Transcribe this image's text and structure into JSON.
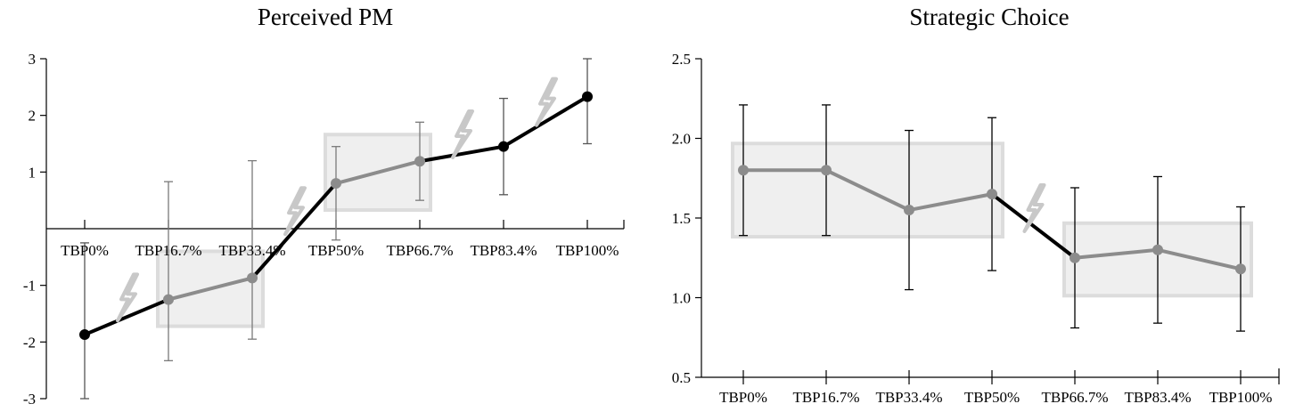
{
  "chart_data": [
    {
      "type": "line",
      "title": "Perceived PM",
      "categories": [
        "TBP0%",
        "TBP16.7%",
        "TBP33.4%",
        "TBP50%",
        "TBP66.7%",
        "TBP83.4%",
        "TBP100%"
      ],
      "series": [
        {
          "values": [
            -1.87,
            -1.25,
            -0.87,
            0.8,
            1.19,
            1.45,
            2.33
          ],
          "error_low": [
            -3.0,
            -2.33,
            -1.95,
            -0.2,
            0.5,
            0.6,
            1.5
          ],
          "error_high": [
            -0.25,
            0.83,
            1.2,
            1.45,
            1.88,
            2.3,
            3.0
          ]
        }
      ],
      "highlight_groups": [
        [
          1,
          2
        ],
        [
          3,
          4
        ]
      ],
      "transition_markers_after_index": [
        0,
        2,
        4,
        5
      ],
      "ylim": [
        -3,
        3
      ],
      "yticks": [
        -3,
        -2,
        -1,
        1,
        2,
        3
      ],
      "ytick_labels": [
        "-3",
        "-2",
        "-1",
        "1",
        "2",
        "3"
      ],
      "x_axis_at": 0,
      "line_color": "#000000",
      "highlight_color": "#8c8c8c",
      "grid": false
    },
    {
      "type": "line",
      "title": "Strategic Choice",
      "categories": [
        "TBP0%",
        "TBP16.7%",
        "TBP33.4%",
        "TBP50%",
        "TBP66.7%",
        "TBP83.4%",
        "TBP100%"
      ],
      "series": [
        {
          "values": [
            1.8,
            1.8,
            1.55,
            1.65,
            1.25,
            1.3,
            1.18
          ],
          "error_low": [
            1.39,
            1.39,
            1.05,
            1.17,
            0.81,
            0.84,
            0.79
          ],
          "error_high": [
            2.21,
            2.21,
            2.05,
            2.13,
            1.69,
            1.76,
            1.57
          ]
        }
      ],
      "highlight_groups": [
        [
          0,
          3
        ],
        [
          4,
          6
        ]
      ],
      "transition_markers_after_index": [
        3
      ],
      "ylim": [
        0.5,
        2.5
      ],
      "yticks": [
        0.5,
        1.0,
        1.5,
        2.0,
        2.5
      ],
      "ytick_labels": [
        "0.5",
        "1.0",
        "1.5",
        "2.0",
        "2.5"
      ],
      "line_color": "#000000",
      "highlight_color": "#8c8c8c",
      "grid": false
    }
  ]
}
